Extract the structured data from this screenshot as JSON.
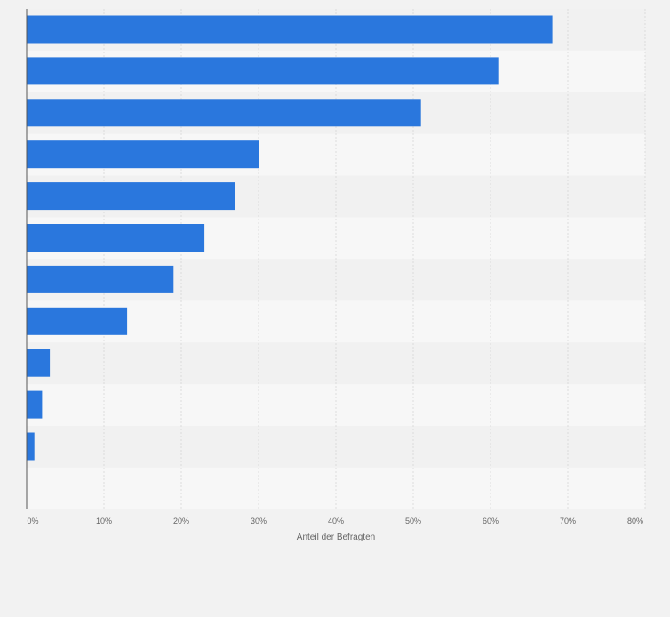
{
  "chart_data": {
    "type": "bar",
    "orientation": "horizontal",
    "categories": [
      "",
      "",
      "",
      "",
      "",
      "",
      "",
      "",
      "",
      "",
      ""
    ],
    "values": [
      68,
      61,
      51,
      30,
      27,
      23,
      19,
      13,
      3,
      2,
      1
    ],
    "unit": "%",
    "xlabel": "Anteil der Befragten",
    "ylabel": "",
    "xlim": [
      0,
      80
    ],
    "ticks": [
      0,
      10,
      20,
      30,
      40,
      50,
      60,
      70,
      80
    ],
    "tick_labels": [
      "0%",
      "10%",
      "20%",
      "30%",
      "40%",
      "50%",
      "60%",
      "70%",
      "80%"
    ],
    "grid": true
  },
  "colors": {
    "bar": "#2a77dd",
    "band_light": "#f7f7f7",
    "band_dark": "#f1f1f1",
    "grid": "#dcdcdc",
    "axis": "#555555",
    "tick_text": "#666666"
  }
}
